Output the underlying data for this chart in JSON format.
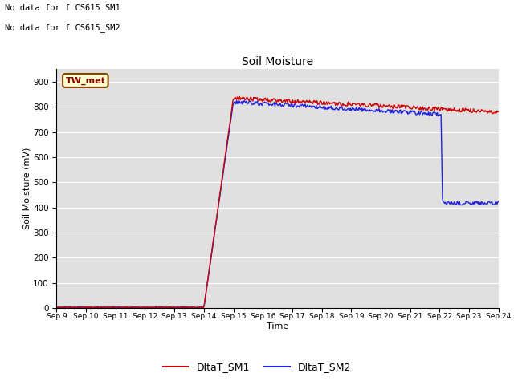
{
  "title": "Soil Moisture",
  "xlabel": "Time",
  "ylabel": "Soil Moisture (mV)",
  "ylim": [
    0,
    950
  ],
  "yticks": [
    0,
    100,
    200,
    300,
    400,
    500,
    600,
    700,
    800,
    900
  ],
  "bg_color": "#e0e0e0",
  "annotations": [
    "No data for f CS615 SM1",
    "No data for f CS615_SM2"
  ],
  "legend_label": "TW_met",
  "x_tick_labels": [
    "Sep 9",
    "Sep 10",
    "Sep 11",
    "Sep 12",
    "Sep 13",
    "Sep 14",
    "Sep 15",
    "Sep 16",
    "Sep 17",
    "Sep 18",
    "Sep 19",
    "Sep 20",
    "Sep 21",
    "Sep 22",
    "Sep 23",
    "Sep 24"
  ],
  "series1_color": "#cc0000",
  "series2_color": "#2222dd",
  "series1_label": "DltaT_SM1",
  "series2_label": "DltaT_SM2"
}
